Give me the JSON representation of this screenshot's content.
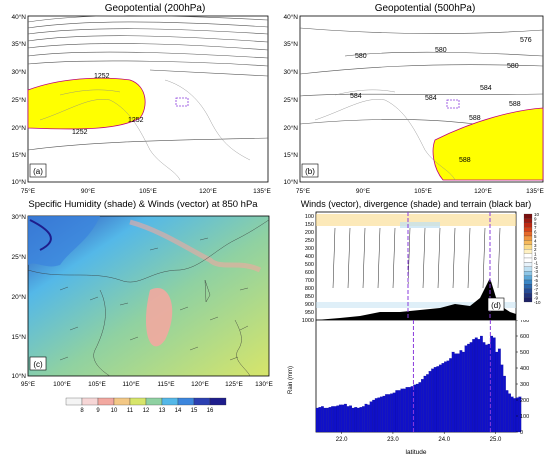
{
  "panel_a": {
    "title": "Geopotential (200hPa)",
    "tag": "(a)",
    "lat_labels": [
      "40°N",
      "35°N",
      "30°N",
      "25°N",
      "20°N",
      "15°N",
      "10°N"
    ],
    "lon_labels": [
      "75°E",
      "90°E",
      "105°E",
      "120°E",
      "135°E"
    ],
    "contour_labels": [
      "1252",
      "1252",
      "1252"
    ]
  },
  "panel_b": {
    "title": "Geopotential (500hPa)",
    "tag": "(b)",
    "lat_labels": [
      "40°N",
      "35°N",
      "30°N",
      "25°N",
      "20°N",
      "15°N",
      "10°N"
    ],
    "lon_labels": [
      "75°E",
      "90°E",
      "105°E",
      "120°E",
      "135°E"
    ],
    "contour_labels": [
      "576",
      "580",
      "580",
      "580",
      "584",
      "584",
      "584",
      "588",
      "588",
      "588"
    ]
  },
  "panel_c": {
    "title": "Specific Humidity (shade) & Winds (vector) at 850 hPa",
    "tag": "(c)",
    "lat_labels": [
      "30°N",
      "25°N",
      "20°N",
      "15°N",
      "10°N"
    ],
    "lon_labels": [
      "95°E",
      "100°E",
      "105°E",
      "110°E",
      "115°E",
      "120°E",
      "125°E",
      "130°E"
    ],
    "colorbar": {
      "labels": [
        "8",
        "9",
        "10",
        "11",
        "12",
        "13",
        "14",
        "15",
        "16"
      ],
      "colors": [
        "#f4f4f4",
        "#f6d6d6",
        "#f2a8a0",
        "#f3c886",
        "#d7e56a",
        "#8fd1a2",
        "#54b8e8",
        "#3c86dd",
        "#2b3fb1",
        "#1e1d8c"
      ]
    }
  },
  "panel_d": {
    "title": "Winds (vector), divergence (shade) and terrain (black bar)",
    "tag": "(d)",
    "p_labels": [
      "100",
      "150",
      "200",
      "250",
      "300",
      "400",
      "500",
      "600",
      "700",
      "800",
      "850",
      "900",
      "950",
      "1000"
    ],
    "cb_labels": [
      "10",
      "9",
      "8",
      "7",
      "6",
      "5",
      "4",
      "3",
      "2",
      "1",
      "0",
      "-1",
      "-2",
      "-3",
      "-4",
      "-5",
      "-6",
      "-7",
      "-8",
      "-9",
      "-10"
    ],
    "cb_colors": [
      "#7a1010",
      "#9c1b12",
      "#bd2a14",
      "#d5431a",
      "#e6692a",
      "#f09440",
      "#f6b95a",
      "#fadb8a",
      "#fff1c2",
      "#ffffff",
      "#ffffff",
      "#e8f3fb",
      "#bfe0f2",
      "#8ec6e6",
      "#5ea8d7",
      "#3b87c5",
      "#2c67ad",
      "#274c94",
      "#22347c",
      "#1e2266"
    ]
  },
  "panel_e": {
    "ylabel": "Rain (mm)",
    "xlabel": "latitude",
    "y_ticks": [
      "0",
      "100",
      "200",
      "300",
      "400",
      "500",
      "600",
      "700"
    ],
    "x_ticks": [
      "22.0",
      "23.0",
      "24.0",
      "25.0"
    ]
  },
  "chart_data": {
    "type": "bar",
    "xlabel": "latitude",
    "ylabel": "Rain (mm)",
    "ylim": [
      0,
      700
    ],
    "xlim": [
      21.5,
      25.4
    ],
    "x_step": 0.05,
    "x_start": 21.5,
    "values": [
      150,
      155,
      160,
      150,
      150,
      155,
      160,
      160,
      165,
      170,
      170,
      175,
      160,
      165,
      150,
      155,
      150,
      155,
      160,
      175,
      170,
      190,
      200,
      210,
      215,
      220,
      225,
      235,
      235,
      240,
      245,
      260,
      260,
      270,
      270,
      280,
      280,
      285,
      295,
      300,
      310,
      330,
      350,
      360,
      380,
      395,
      405,
      410,
      420,
      430,
      440,
      445,
      460,
      500,
      490,
      490,
      510,
      500,
      540,
      550,
      560,
      580,
      590,
      580,
      600,
      560,
      545,
      550,
      600,
      590,
      500,
      520,
      420,
      350,
      260,
      240,
      220,
      210,
      215,
      220
    ],
    "dashed_lines_x": [
      23.4,
      24.9
    ]
  }
}
